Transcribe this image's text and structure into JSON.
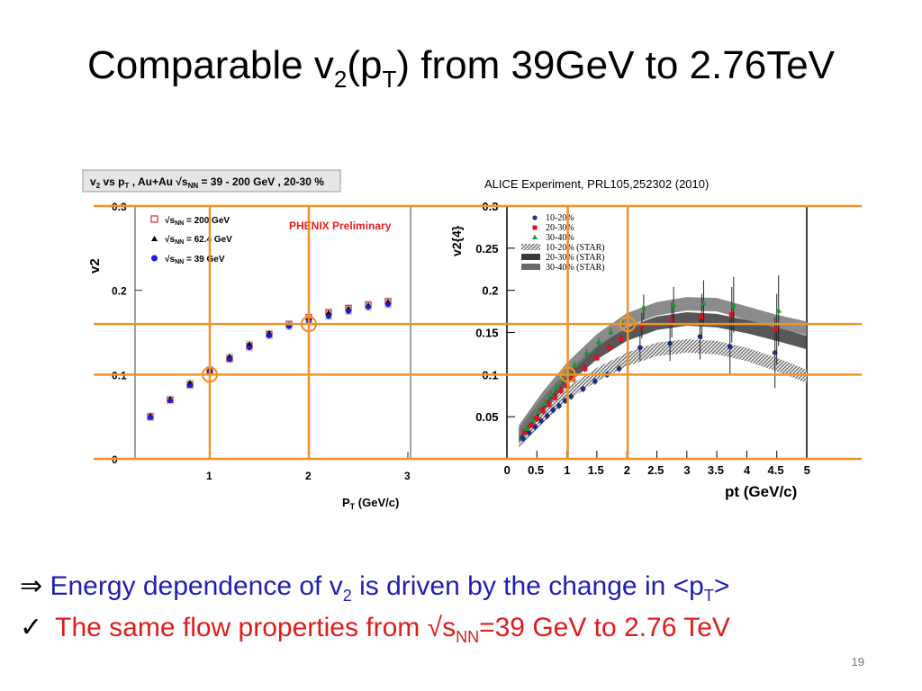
{
  "title": {
    "main": "Comparable v",
    "sub_2": "2",
    "paren_open": "(p",
    "sub_T": "T",
    "rest": ") from 39GeV to 2.76TeV"
  },
  "bullets": {
    "b1_arrow": "⇒",
    "b1_text_a": "Energy dependence of v",
    "b1_sub_2": "2",
    "b1_text_b": " is driven by the change in <p",
    "b1_sub_T": "T",
    "b1_text_c": ">",
    "b2_check": "✓",
    "b2_text_a": "The same flow properties from √s",
    "b2_sub_NN": "NN",
    "b2_text_b": "=39 GeV to 2.76 TeV"
  },
  "slide_number": "19",
  "colors": {
    "guide": "#f0922a",
    "blue_text": "#1f1fb4",
    "red_text": "#e01b1b",
    "phenix_red": "#e8201c"
  },
  "chart_data": [
    {
      "type": "scatter",
      "panel": "PHENIX",
      "header": "v2 vs pT , Au+Au √sNN = 39 - 200 GeV , 20-30 %",
      "header_parts": {
        "a": "v",
        "a_sub": "2",
        "b": " vs p",
        "b_sub": "T",
        "c": " , Au+Au ",
        "d": "s",
        "d_sub": "NN",
        "e": " = 39 - 200 GeV , 20-30 %"
      },
      "annotation": "PHENIX Preliminary",
      "ylabel": "v2",
      "xlabel": "PT (GeV/c)",
      "xlabel_parts": {
        "a": "P",
        "sub": "T",
        "b": " (GeV/c)"
      },
      "xlim": [
        0.2,
        3.0
      ],
      "ylim": [
        0,
        0.3
      ],
      "xticks": [
        "1",
        "2",
        "3"
      ],
      "yticks": [
        "0",
        "0.1",
        "0.2",
        "0.3"
      ],
      "legend": [
        {
          "label": "√sNN = 200 GeV",
          "marker": "open-square",
          "color": "#d8282a"
        },
        {
          "label": "√sNN = 62.4 GeV",
          "marker": "triangle",
          "color": "#000000"
        },
        {
          "label": "√sNN = 39 GeV",
          "marker": "circle",
          "color": "#1a1ae6"
        }
      ],
      "legend_texts": {
        "s1_a": "√",
        "s1_b": "s",
        "s1_sub": "NN",
        "s1_c": " = 200 GeV",
        "s2_a": "√",
        "s2_b": "s",
        "s2_sub": "NN",
        "s2_c": " = 62.4  GeV",
        "s3_a": "√",
        "s3_b": "s",
        "s3_sub": "NN",
        "s3_c": " = 39  GeV"
      },
      "x": [
        0.4,
        0.6,
        0.8,
        1.0,
        1.2,
        1.4,
        1.6,
        1.8,
        2.0,
        2.2,
        2.4,
        2.6,
        2.8
      ],
      "series": [
        {
          "name": "√sNN = 200 GeV",
          "values": [
            0.05,
            0.07,
            0.088,
            0.104,
            0.119,
            0.134,
            0.148,
            0.16,
            0.168,
            0.174,
            0.179,
            0.183,
            0.187
          ]
        },
        {
          "name": "√sNN = 62.4 GeV",
          "values": [
            0.051,
            0.071,
            0.09,
            0.106,
            0.121,
            0.136,
            0.149,
            0.159,
            0.167,
            0.173,
            0.178,
            0.182,
            0.186
          ]
        },
        {
          "name": "√sNN = 39 GeV",
          "values": [
            0.049,
            0.069,
            0.087,
            0.103,
            0.118,
            0.132,
            0.146,
            0.157,
            0.163,
            0.169,
            0.175,
            0.18,
            0.183
          ]
        }
      ]
    },
    {
      "type": "scatter",
      "panel": "ALICE",
      "caption": "ALICE Experiment, PRL105,252302 (2010)",
      "ylabel": "v2{4}",
      "xlabel": "pt (GeV/c)",
      "xlim": [
        0,
        5
      ],
      "ylim": [
        0,
        0.3
      ],
      "xticks": [
        "0",
        "0.5",
        "1",
        "1.5",
        "2",
        "2.5",
        "3",
        "3.5",
        "4",
        "4.5",
        "5"
      ],
      "yticks": [
        "0.05",
        "0.1",
        "0.15",
        "0.2",
        "0.25",
        "0.3"
      ],
      "legend": [
        {
          "label": "10-20%",
          "marker": "circle",
          "color": "#1a2f8a"
        },
        {
          "label": "20-30%",
          "marker": "square",
          "color": "#e01020"
        },
        {
          "label": "30-40%",
          "marker": "triangle",
          "color": "#1a9a30"
        },
        {
          "label": "10-20% (STAR)",
          "marker": "band",
          "color": "#9a9a9a"
        },
        {
          "label": "20-30% (STAR)",
          "marker": "band",
          "color": "#3a3a3a"
        },
        {
          "label": "30-40% (STAR)",
          "marker": "band",
          "color": "#6a6a6a"
        }
      ],
      "series": [
        {
          "name": "10-20%",
          "x": [
            0.3,
            0.4,
            0.5,
            0.6,
            0.7,
            0.8,
            0.9,
            1.0,
            1.1,
            1.3,
            1.5,
            1.7,
            1.9,
            2.25,
            2.75,
            3.25,
            3.75,
            4.5
          ],
          "values": [
            0.024,
            0.031,
            0.038,
            0.045,
            0.051,
            0.058,
            0.063,
            0.069,
            0.074,
            0.083,
            0.092,
            0.1,
            0.107,
            0.132,
            0.137,
            0.145,
            0.133,
            0.126
          ]
        },
        {
          "name": "20-30%",
          "x": [
            0.3,
            0.4,
            0.5,
            0.6,
            0.7,
            0.8,
            0.9,
            1.0,
            1.1,
            1.3,
            1.5,
            1.7,
            1.9,
            2.25,
            2.75,
            3.25,
            3.75,
            4.5
          ],
          "values": [
            0.032,
            0.04,
            0.048,
            0.057,
            0.065,
            0.073,
            0.081,
            0.087,
            0.095,
            0.107,
            0.12,
            0.132,
            0.142,
            0.158,
            0.165,
            0.169,
            0.171,
            0.154
          ]
        },
        {
          "name": "30-40%",
          "x": [
            0.3,
            0.4,
            0.5,
            0.6,
            0.7,
            0.8,
            0.9,
            1.0,
            1.1,
            1.3,
            1.5,
            1.7,
            1.9,
            2.25,
            2.75,
            3.25,
            3.75,
            4.5
          ],
          "values": [
            0.036,
            0.046,
            0.056,
            0.066,
            0.076,
            0.085,
            0.094,
            0.103,
            0.111,
            0.126,
            0.139,
            0.151,
            0.161,
            0.18,
            0.183,
            0.185,
            0.183,
            0.176
          ]
        }
      ],
      "star_bands": [
        {
          "name": "10-20% (STAR)",
          "x": [
            0.2,
            0.6,
            1.0,
            1.5,
            2.0,
            2.5,
            3.0,
            3.5,
            4.0,
            4.5,
            5.0
          ],
          "values": [
            0.02,
            0.05,
            0.077,
            0.1,
            0.118,
            0.13,
            0.134,
            0.132,
            0.124,
            0.112,
            0.098
          ]
        },
        {
          "name": "20-30% (STAR)",
          "x": [
            0.2,
            0.6,
            1.0,
            1.5,
            2.0,
            2.5,
            3.0,
            3.5,
            4.0,
            4.5,
            5.0
          ],
          "values": [
            0.028,
            0.065,
            0.096,
            0.126,
            0.148,
            0.161,
            0.166,
            0.164,
            0.157,
            0.148,
            0.138
          ]
        },
        {
          "name": "30-40% (STAR)",
          "x": [
            0.2,
            0.6,
            1.0,
            1.5,
            2.0,
            2.5,
            3.0,
            3.5,
            4.0,
            4.5,
            5.0
          ],
          "values": [
            0.032,
            0.072,
            0.106,
            0.14,
            0.165,
            0.178,
            0.184,
            0.183,
            0.173,
            0.163,
            0.155
          ]
        }
      ]
    }
  ],
  "guides": {
    "v2_levels": [
      0.0,
      0.1,
      0.16,
      0.3
    ],
    "pt_levels": [
      1.0,
      2.0
    ],
    "matched_points": [
      {
        "pt": 1.0,
        "v2": 0.1
      },
      {
        "pt": 2.0,
        "v2": 0.16
      }
    ]
  }
}
